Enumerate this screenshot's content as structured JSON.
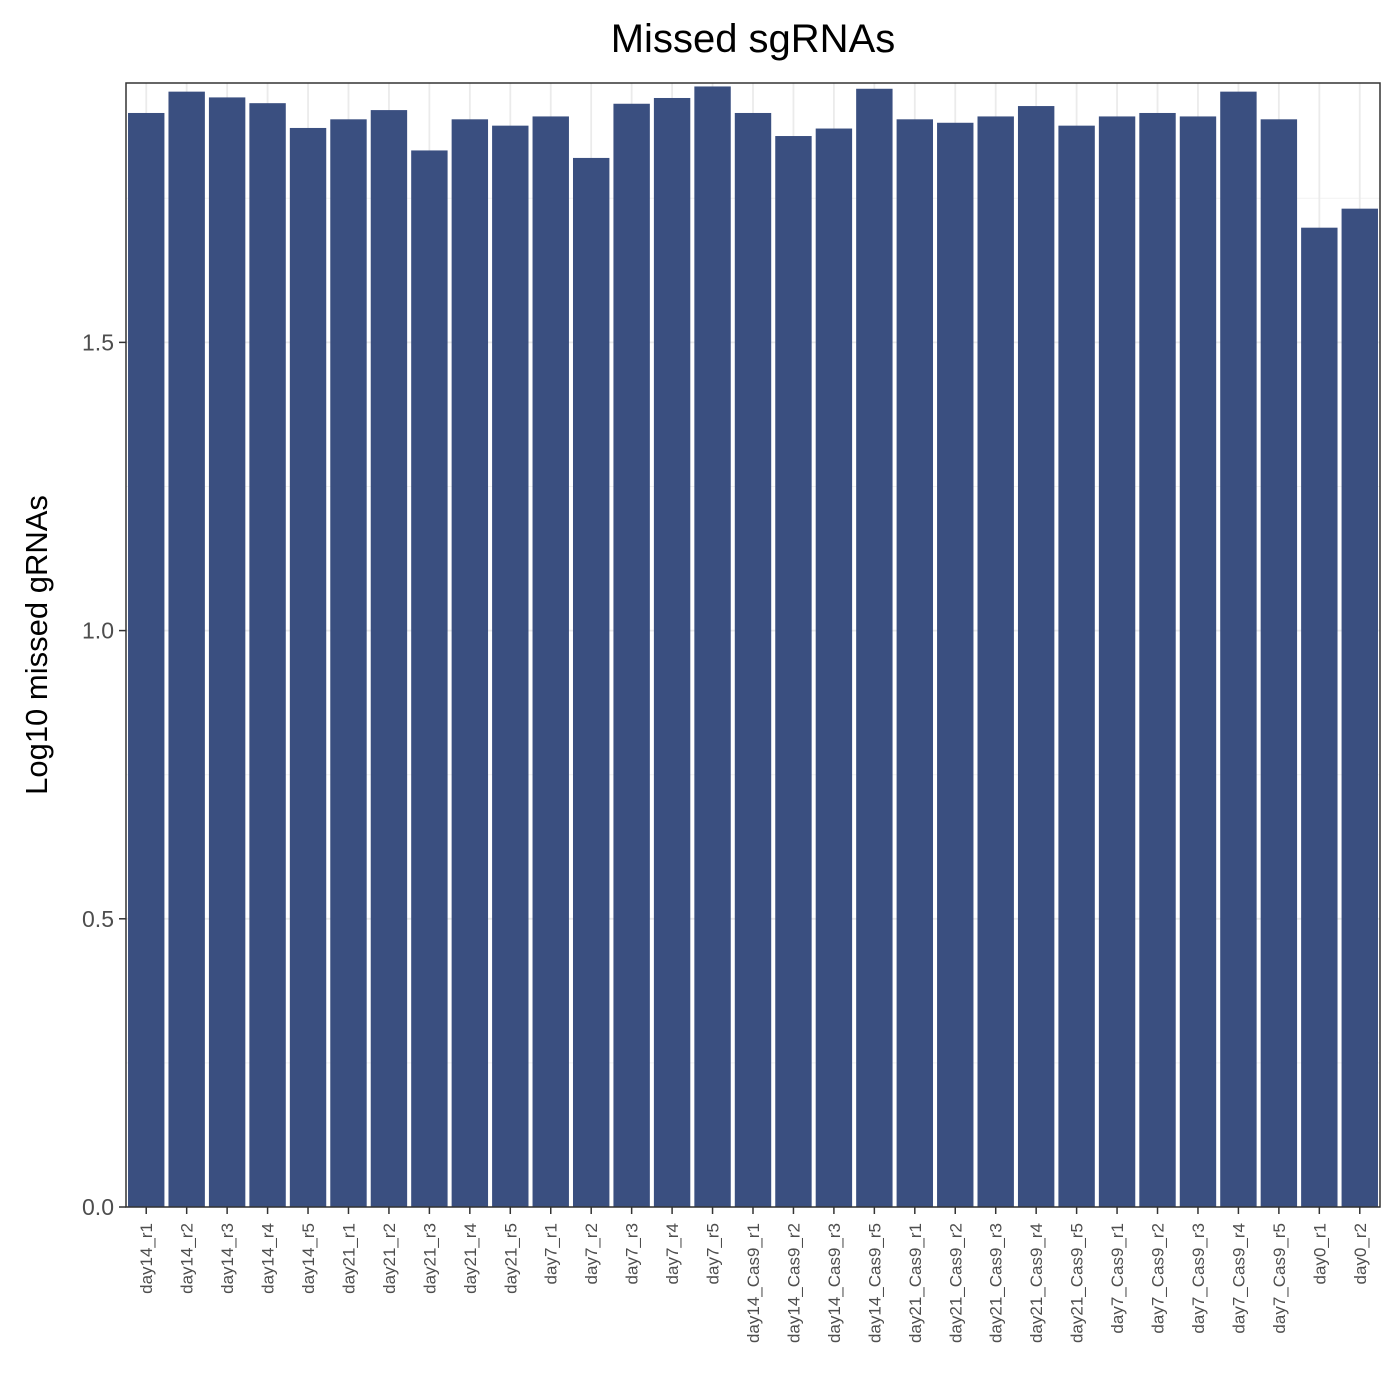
{
  "chart_data": {
    "type": "bar",
    "title": "Missed sgRNAs",
    "xlabel": "",
    "ylabel": "Log10 missed gRNAs",
    "ylim": [
      0,
      1.95
    ],
    "yticks": [
      0.0,
      0.5,
      1.0,
      1.5
    ],
    "ytick_labels": [
      "0.0",
      "0.5",
      "1.0",
      "1.5"
    ],
    "grid": true,
    "bar_color": "#3a4f80",
    "categories": [
      "day14_r1",
      "day14_r2",
      "day14_r3",
      "day14_r4",
      "day14_r5",
      "day21_r1",
      "day21_r2",
      "day21_r3",
      "day21_r4",
      "day21_r5",
      "day7_r1",
      "day7_r2",
      "day7_r3",
      "day7_r4",
      "day7_r5",
      "day14_Cas9_r1",
      "day14_Cas9_r2",
      "day14_Cas9_r3",
      "day14_Cas9_r5",
      "day21_Cas9_r1",
      "day21_Cas9_r2",
      "day21_Cas9_r3",
      "day21_Cas9_r4",
      "day21_Cas9_r5",
      "day7_Cas9_r1",
      "day7_Cas9_r2",
      "day7_Cas9_r3",
      "day7_Cas9_r4",
      "day7_Cas9_r5",
      "day0_r1",
      "day0_r2"
    ],
    "values": [
      1.898,
      1.935,
      1.925,
      1.915,
      1.872,
      1.887,
      1.903,
      1.833,
      1.887,
      1.876,
      1.892,
      1.82,
      1.914,
      1.924,
      1.944,
      1.898,
      1.858,
      1.871,
      1.94,
      1.887,
      1.881,
      1.892,
      1.91,
      1.876,
      1.892,
      1.898,
      1.892,
      1.935,
      1.887,
      1.699,
      1.732
    ]
  }
}
